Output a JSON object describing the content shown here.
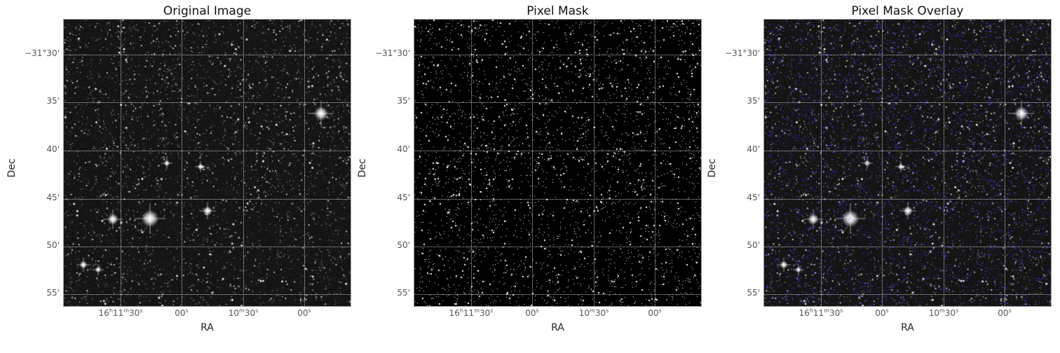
{
  "panels": [
    {
      "title": "Original Image",
      "kind": "original"
    },
    {
      "title": "Pixel Mask",
      "kind": "mask"
    },
    {
      "title": "Pixel Mask Overlay",
      "kind": "overlay"
    }
  ],
  "axes": {
    "xlabel": "RA",
    "ylabel": "Dec",
    "yticks": [
      "−31°30'",
      "35'",
      "40'",
      "45'",
      "50'",
      "55'"
    ],
    "xticks": [
      {
        "main": "16",
        "sup1": "h",
        "mid": "11",
        "sup2": "m",
        "tail": "30",
        "sup3": "s"
      },
      {
        "main": "",
        "sup1": "",
        "mid": "",
        "sup2": "",
        "tail": "00",
        "sup3": "s"
      },
      {
        "main": "",
        "sup1": "",
        "mid": "10",
        "sup2": "m",
        "tail": "30",
        "sup3": "s"
      },
      {
        "main": "",
        "sup1": "",
        "mid": "",
        "sup2": "",
        "tail": "00",
        "sup3": "s"
      }
    ]
  },
  "colors": {
    "overlay_mask": "#3a3aff",
    "grid": "#ffffff",
    "star": "#ffffff"
  }
}
